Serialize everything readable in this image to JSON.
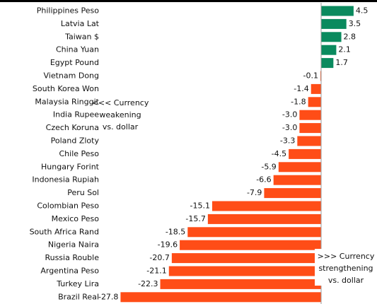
{
  "chart_data": {
    "type": "hbar",
    "categories": [
      "Philippines Peso",
      "Latvia Lat",
      "Taiwan $",
      "China Yuan",
      "Egypt Pound",
      "Vietnam Dong",
      "South Korea Won",
      "Malaysia Ringgit",
      "India Rupee",
      "Czech Koruna",
      "Poland Zloty",
      "Chile Peso",
      "Hungary Forint",
      "Indonesia Rupiah",
      "Peru Sol",
      "Colombian Peso",
      "Mexico Peso",
      "South Africa Rand",
      "Nigeria Naira",
      "Russia Rouble",
      "Argentina Peso",
      "Turkey Lira",
      "Brazil Real"
    ],
    "values": [
      4.5,
      3.5,
      2.8,
      2.1,
      1.7,
      -0.1,
      -1.4,
      -1.8,
      -3.0,
      -3.0,
      -3.3,
      -4.5,
      -5.9,
      -6.6,
      -7.9,
      -15.1,
      -15.7,
      -18.5,
      -19.6,
      -20.7,
      -21.1,
      -22.3,
      -27.8
    ],
    "value_labels": [
      "4.5",
      "3.5",
      "2.8",
      "2.1",
      "1.7",
      "-0.1",
      "-1.4",
      "-1.8",
      "-3.0",
      "-3.0",
      "-3.3",
      "-4.5",
      "-5.9",
      "-6.6",
      "-7.9",
      "-15.1",
      "-15.7",
      "-18.5",
      "-19.6",
      "-20.7",
      "-21.1",
      "-22.3",
      "-27.8"
    ],
    "positive_color": "#0a8a5e",
    "negative_color": "#ff4d17",
    "xlim": [
      -30,
      7.5
    ],
    "annotations": [
      {
        "lines": [
          "<<< Currency",
          "weakening",
          "vs. dollar"
        ]
      },
      {
        "lines": [
          ">>> Currency",
          "strengthening",
          "vs. dollar"
        ]
      }
    ]
  }
}
